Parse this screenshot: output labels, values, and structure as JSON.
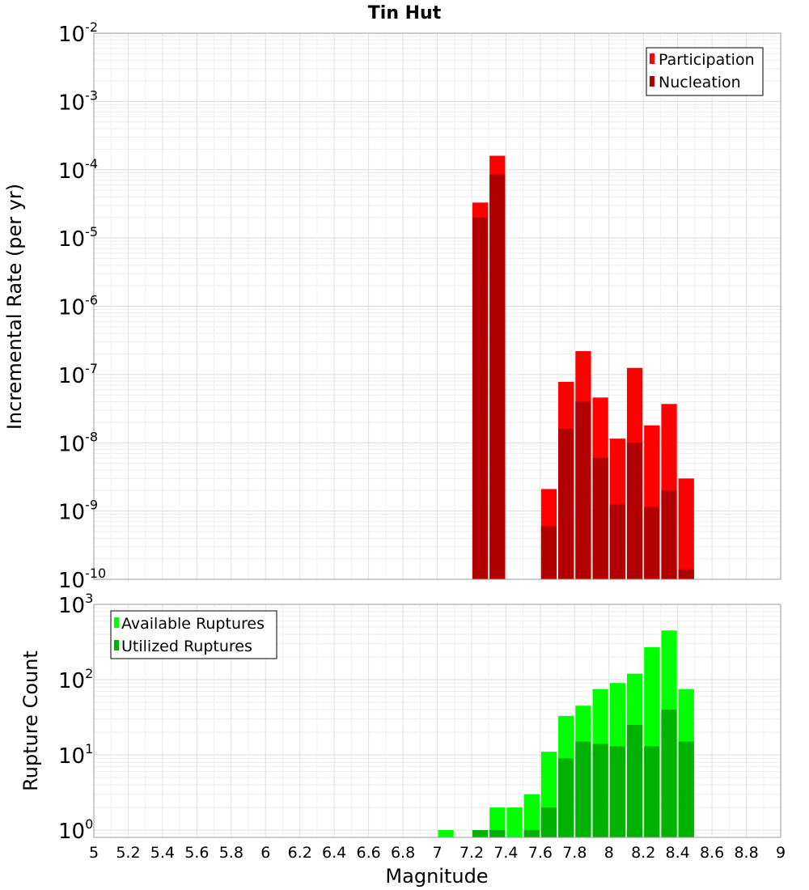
{
  "chart_data": [
    {
      "type": "bar",
      "title": "Tin Hut",
      "xlabel": "",
      "ylabel": "Incremental Rate (per yr)",
      "y_scale": "log",
      "ylim": [
        1e-10,
        0.01
      ],
      "y_tick_exponents": [
        -10,
        -9,
        -8,
        -7,
        -6,
        -5,
        -4,
        -3,
        -2
      ],
      "xlim": [
        5,
        9
      ],
      "bar_width": 0.1,
      "legend_position": "top-right",
      "grid": true,
      "series": [
        {
          "name": "Participation",
          "color": "#ff0000",
          "x": [
            7.25,
            7.35,
            7.65,
            7.75,
            7.85,
            7.95,
            8.05,
            8.15,
            8.25,
            8.35,
            8.45
          ],
          "values": [
            3.3e-05,
            0.00016,
            2.1e-09,
            7.8e-08,
            2.2e-07,
            4.6e-08,
            1.15e-08,
            1.25e-07,
            1.8e-08,
            3.7e-08,
            3e-09
          ]
        },
        {
          "name": "Nucleation",
          "color": "#b20000",
          "x": [
            7.25,
            7.35,
            7.65,
            7.75,
            7.85,
            7.95,
            8.05,
            8.15,
            8.25,
            8.35,
            8.45
          ],
          "values": [
            2e-05,
            8.5e-05,
            6e-10,
            1.6e-08,
            4e-08,
            6e-09,
            1.25e-09,
            1e-08,
            1.15e-09,
            2e-09,
            1.4e-10
          ]
        }
      ]
    },
    {
      "type": "bar",
      "title": "",
      "xlabel": "Magnitude",
      "ylabel": "Rupture Count",
      "y_scale": "log",
      "ylim": [
        0.8,
        1000
      ],
      "y_tick_exponents": [
        0,
        1,
        2,
        3
      ],
      "xlim": [
        5,
        9
      ],
      "x_ticks": [
        "5",
        "5.2",
        "5.4",
        "5.6",
        "5.8",
        "6",
        "6.2",
        "6.4",
        "6.6",
        "6.8",
        "7",
        "7.2",
        "7.4",
        "7.6",
        "7.8",
        "8",
        "8.2",
        "8.4",
        "8.6",
        "8.8",
        "9"
      ],
      "bar_width": 0.1,
      "legend_position": "top-left",
      "grid": true,
      "series": [
        {
          "name": "Available Ruptures",
          "color": "#00ff00",
          "x": [
            7.05,
            7.25,
            7.35,
            7.45,
            7.55,
            7.65,
            7.75,
            7.85,
            7.95,
            8.05,
            8.15,
            8.25,
            8.35,
            8.45
          ],
          "values": [
            1,
            1,
            2,
            2,
            3,
            11,
            33,
            45,
            75,
            90,
            120,
            270,
            450,
            75
          ]
        },
        {
          "name": "Utilized Ruptures",
          "color": "#00b200",
          "x": [
            7.25,
            7.35,
            7.55,
            7.65,
            7.75,
            7.85,
            7.95,
            8.05,
            8.15,
            8.25,
            8.35,
            8.45
          ],
          "values": [
            1,
            1,
            1,
            2,
            9,
            15,
            14,
            13,
            25,
            13,
            40,
            15
          ]
        }
      ]
    }
  ]
}
